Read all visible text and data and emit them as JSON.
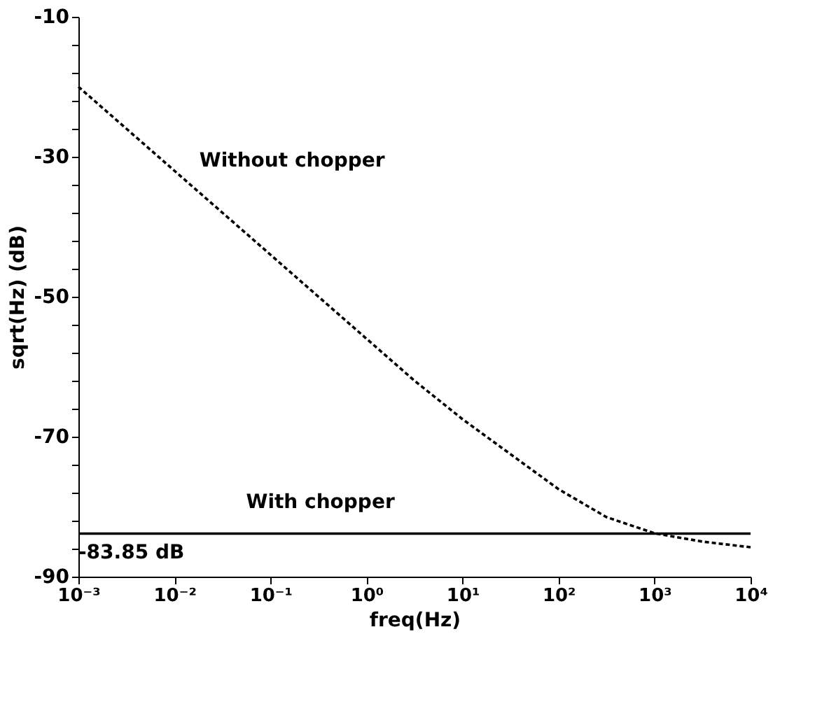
{
  "chart_data": {
    "type": "line",
    "xlabel": "freq(Hz)",
    "ylabel": "sqrt(Hz)  (dB)",
    "log": "x",
    "grid": false,
    "xlim": [
      0.001,
      10000
    ],
    "ylim": [
      -90,
      -10
    ],
    "xticks": [
      {
        "value": 0.001,
        "label": "10⁻³"
      },
      {
        "value": 0.01,
        "label": "10⁻²"
      },
      {
        "value": 0.1,
        "label": "10⁻¹"
      },
      {
        "value": 1,
        "label": "10⁰"
      },
      {
        "value": 10,
        "label": "10¹"
      },
      {
        "value": 100,
        "label": "10²"
      },
      {
        "value": 1000,
        "label": "10³"
      },
      {
        "value": 10000,
        "label": "10⁴"
      }
    ],
    "yticks": [
      -90,
      {
        "value": -86,
        "label": null
      },
      {
        "value": -82,
        "label": null
      },
      {
        "value": -78,
        "label": null
      },
      {
        "value": -74,
        "label": null
      },
      -70,
      {
        "value": -66,
        "label": null
      },
      {
        "value": -62,
        "label": null
      },
      {
        "value": -58,
        "label": null
      },
      {
        "value": -54,
        "label": null
      },
      -50,
      {
        "value": -46,
        "label": null
      },
      {
        "value": -42,
        "label": null
      },
      {
        "value": -38,
        "label": null
      },
      {
        "value": -34,
        "label": null
      },
      -30,
      {
        "value": -26,
        "label": null
      },
      {
        "value": -22,
        "label": null
      },
      {
        "value": -18,
        "label": null
      },
      {
        "value": -14,
        "label": null
      },
      -10
    ],
    "series": [
      {
        "color": "#000000",
        "line_style": "dotted",
        "x": [
          0.001,
          0.01,
          0.1,
          1,
          3.16,
          10,
          31.6,
          100,
          316,
          1000,
          3162,
          10000
        ],
        "values": [
          -20,
          -32,
          -44,
          -56,
          -62,
          -67.5,
          -72.5,
          -77.5,
          -81.5,
          -83.8,
          -85,
          -85.8
        ]
      },
      {
        "color": "#000000",
        "line_style": "solid",
        "x": [
          0.001,
          10000
        ],
        "values": [
          -83.85,
          -83.85
        ]
      }
    ],
    "annotations": [
      "Without chopper",
      "With chopper",
      "-83.85 dB"
    ]
  }
}
